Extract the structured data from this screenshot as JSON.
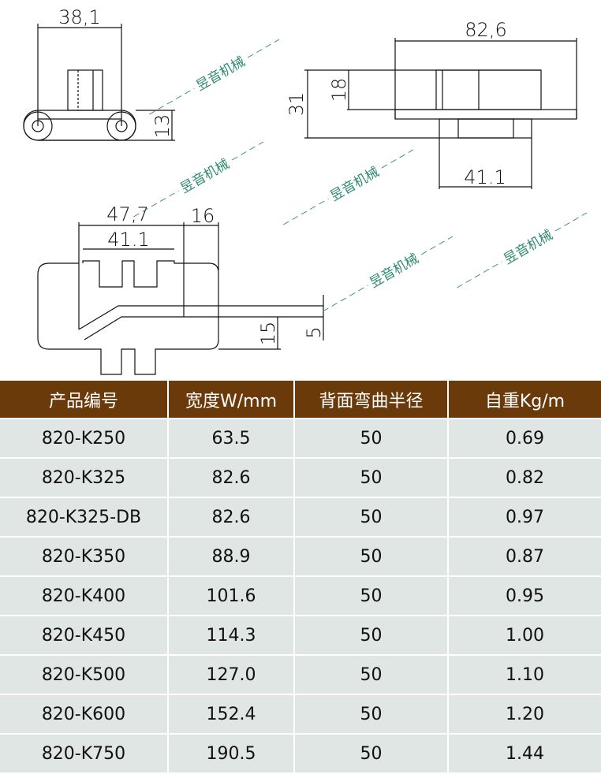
{
  "drawings": {
    "side_view": {
      "width_dim": "38,1",
      "height_dim": "13"
    },
    "front_view": {
      "overall_width_dim": "82,6",
      "total_height_dim": "31",
      "top_height_dim": "18",
      "bottom_width_dim": "41.1"
    },
    "top_view": {
      "width_dim": "47,7",
      "inner_width_dim": "41.1",
      "edge_dim": "16",
      "height_dim": "15",
      "plate_dim": "5"
    }
  },
  "table": {
    "headers": [
      "产品编号",
      "宽度W/mm",
      "背面弯曲半径",
      "自重Kg/m"
    ],
    "rows": [
      [
        "820-K250",
        "63.5",
        "50",
        "0.69"
      ],
      [
        "820-K325",
        "82.6",
        "50",
        "0.82"
      ],
      [
        "820-K325-DB",
        "82.6",
        "50",
        "0.97"
      ],
      [
        "820-K350",
        "88.9",
        "50",
        "0.87"
      ],
      [
        "820-K400",
        "101.6",
        "50",
        "0.95"
      ],
      [
        "820-K450",
        "114.3",
        "50",
        "1.00"
      ],
      [
        "820-K500",
        "127.0",
        "50",
        "1.10"
      ],
      [
        "820-K600",
        "152.4",
        "50",
        "1.20"
      ],
      [
        "820-K750",
        "190.5",
        "50",
        "1.44"
      ]
    ]
  },
  "colors": {
    "header_bg": "#6b3a0a",
    "row_bg": "#dfe6e3",
    "watermark": "#2e8a72"
  },
  "watermark": "昱音机械"
}
